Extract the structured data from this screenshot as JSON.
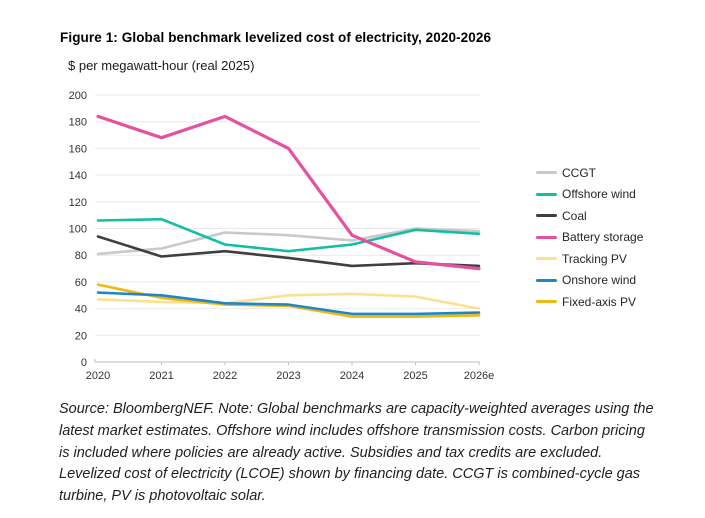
{
  "figure": {
    "title": "Figure 1: Global benchmark levelized cost of electricity, 2020-2026",
    "subtitle": "$ per megawatt-hour (real 2025)",
    "source_note": "Source: BloombergNEF. Note: Global benchmarks are capacity-weighted averages using the latest market estimates. Offshore wind includes offshore transmission costs. Carbon pricing is included where policies are already active. Subsidies and tax credits are excluded. Levelized cost of electricity (LCOE) shown by financing date. CCGT is combined-cycle gas turbine, PV is photovoltaic solar."
  },
  "chart_data": {
    "type": "line",
    "x": [
      "2020",
      "2021",
      "2022",
      "2023",
      "2024",
      "2025",
      "2026e"
    ],
    "ylim": [
      0,
      200
    ],
    "ytick_interval": 20,
    "grid": true,
    "legend_position": "right",
    "xlabel": "",
    "ylabel": "$ per megawatt-hour (real 2025)",
    "series": [
      {
        "name": "CCGT",
        "color": "#c9c9c9",
        "values": [
          81,
          85,
          97,
          95,
          91,
          100,
          98
        ]
      },
      {
        "name": "Offshore wind",
        "color": "#12bfa3",
        "values": [
          106,
          107,
          88,
          83,
          88,
          99,
          96
        ]
      },
      {
        "name": "Coal",
        "color": "#3f3f3f",
        "values": [
          94,
          79,
          83,
          78,
          72,
          74,
          72
        ]
      },
      {
        "name": "Battery storage",
        "color": "#e3519f",
        "values": [
          184,
          168,
          184,
          160,
          95,
          75,
          70
        ]
      },
      {
        "name": "Tracking PV",
        "color": "#fbe18f",
        "values": [
          47,
          45,
          44,
          50,
          51,
          49,
          40
        ]
      },
      {
        "name": "Onshore wind",
        "color": "#1e87c8",
        "values": [
          52,
          50,
          44,
          43,
          36,
          36,
          37
        ]
      },
      {
        "name": "Fixed-axis PV",
        "color": "#efb810",
        "values": [
          58,
          48,
          43,
          42,
          34,
          34,
          35
        ]
      }
    ],
    "axis_text_color": "#333333",
    "gridline_color": "#e9e9e9",
    "axis_line_color": "#bfbfbf"
  }
}
